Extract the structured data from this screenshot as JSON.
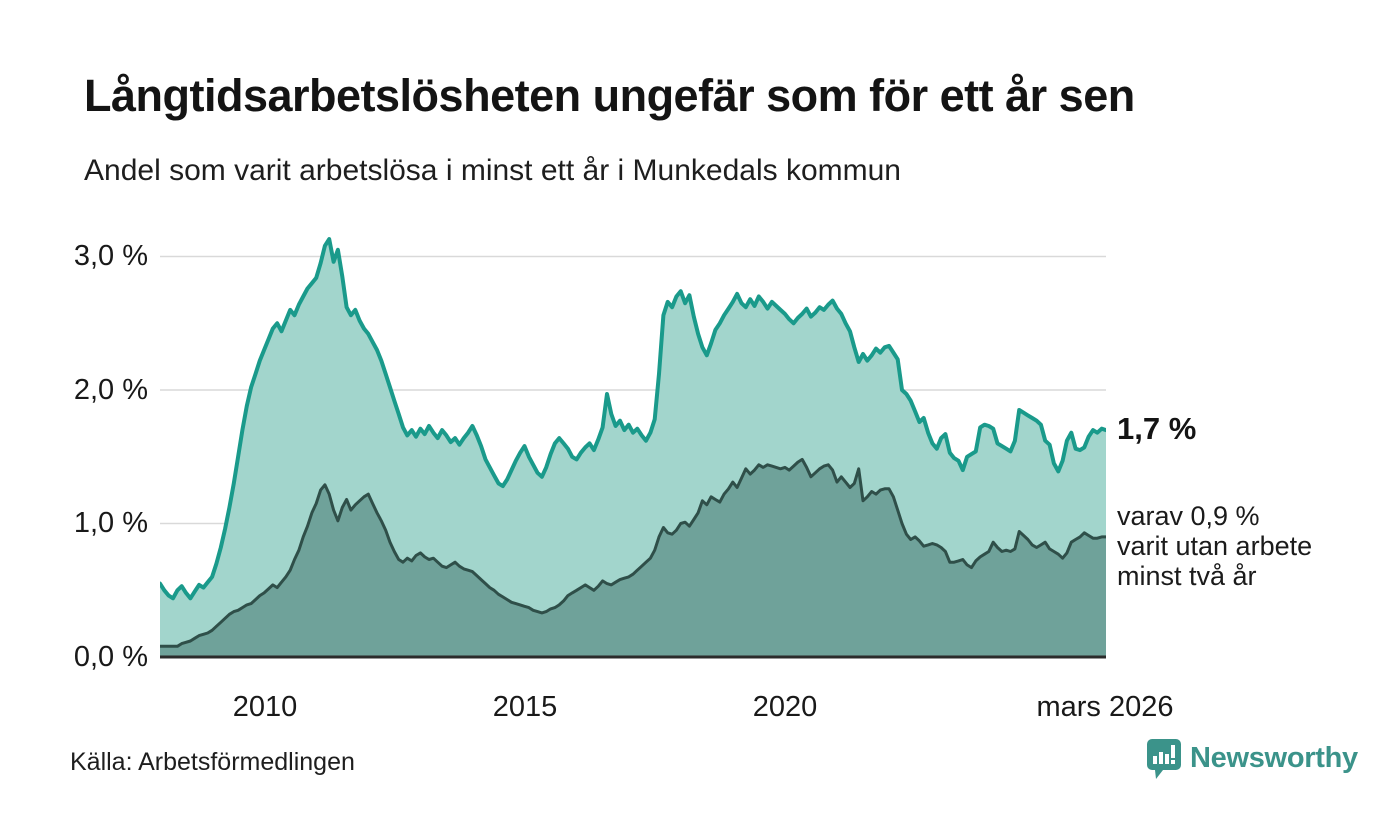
{
  "header": {
    "title": "Långtidsarbetslösheten ungefär som för ett år sen",
    "subtitle": "Andel som varit arbetslösa i minst ett år i Munkedals kommun"
  },
  "footer": {
    "source": "Källa: Arbetsförmedlingen",
    "brand_name": "Newsworthy"
  },
  "colors": {
    "line_1yr": "#1a9a8b",
    "fill_1yr": "#a2d5cc",
    "line_2yr": "#2f4f49",
    "fill_2yr": "#6fa29a",
    "gridline": "#d9d9d9",
    "axis_baseline": "#2b2b2b",
    "brand_teal": "#3b938a"
  },
  "chart_data": {
    "type": "area",
    "title": "Långtidsarbetslösheten ungefär som för ett år sen",
    "subtitle": "Andel som varit arbetslösa i minst ett år i Munkedals kommun",
    "x_start": "2008-01",
    "x_end": "2026-03",
    "frequency": "monthly",
    "xlabel": "",
    "ylabel": "",
    "ylim": [
      0,
      3.3
    ],
    "grid": "horizontal",
    "legend": "none",
    "x_ticks": [
      {
        "label": "2010"
      },
      {
        "label": "2015"
      },
      {
        "label": "2020"
      },
      {
        "label": "mars 2026"
      }
    ],
    "y_ticks": [
      {
        "label": "0,0 %",
        "value": 0
      },
      {
        "label": "1,0 %",
        "value": 1
      },
      {
        "label": "2,0 %",
        "value": 2
      },
      {
        "label": "3,0 %",
        "value": 3
      }
    ],
    "series": [
      {
        "name": "Andel som varit arbetslösa i minst ett år",
        "color": "#1a9a8b",
        "fill": "#a2d5cc",
        "latest_value_pct": 1.7,
        "values": [
          0.55,
          0.5,
          0.46,
          0.44,
          0.5,
          0.53,
          0.48,
          0.44,
          0.49,
          0.54,
          0.52,
          0.56,
          0.6,
          0.7,
          0.82,
          0.96,
          1.12,
          1.3,
          1.5,
          1.7,
          1.88,
          2.02,
          2.12,
          2.22,
          2.3,
          2.38,
          2.46,
          2.5,
          2.44,
          2.52,
          2.6,
          2.56,
          2.64,
          2.7,
          2.76,
          2.8,
          2.84,
          2.95,
          3.08,
          3.13,
          2.96,
          3.05,
          2.85,
          2.62,
          2.56,
          2.6,
          2.52,
          2.46,
          2.42,
          2.36,
          2.3,
          2.22,
          2.12,
          2.02,
          1.92,
          1.82,
          1.72,
          1.66,
          1.7,
          1.65,
          1.71,
          1.67,
          1.73,
          1.68,
          1.64,
          1.7,
          1.66,
          1.61,
          1.64,
          1.59,
          1.64,
          1.68,
          1.73,
          1.66,
          1.58,
          1.48,
          1.42,
          1.36,
          1.3,
          1.28,
          1.33,
          1.4,
          1.47,
          1.53,
          1.58,
          1.5,
          1.44,
          1.38,
          1.35,
          1.42,
          1.52,
          1.6,
          1.64,
          1.6,
          1.56,
          1.5,
          1.48,
          1.53,
          1.57,
          1.6,
          1.55,
          1.63,
          1.72,
          1.97,
          1.82,
          1.73,
          1.77,
          1.7,
          1.74,
          1.68,
          1.71,
          1.66,
          1.62,
          1.68,
          1.78,
          2.12,
          2.56,
          2.66,
          2.62,
          2.7,
          2.74,
          2.65,
          2.71,
          2.55,
          2.42,
          2.32,
          2.26,
          2.35,
          2.45,
          2.5,
          2.56,
          2.61,
          2.66,
          2.72,
          2.65,
          2.62,
          2.68,
          2.63,
          2.7,
          2.66,
          2.61,
          2.66,
          2.63,
          2.6,
          2.57,
          2.53,
          2.5,
          2.54,
          2.57,
          2.61,
          2.55,
          2.58,
          2.62,
          2.6,
          2.64,
          2.67,
          2.61,
          2.57,
          2.5,
          2.44,
          2.32,
          2.21,
          2.27,
          2.22,
          2.26,
          2.31,
          2.28,
          2.32,
          2.33,
          2.28,
          2.23,
          2.0,
          1.97,
          1.92,
          1.84,
          1.76,
          1.79,
          1.68,
          1.6,
          1.56,
          1.64,
          1.67,
          1.53,
          1.49,
          1.47,
          1.4,
          1.5,
          1.52,
          1.54,
          1.72,
          1.74,
          1.73,
          1.71,
          1.6,
          1.58,
          1.56,
          1.54,
          1.62,
          1.85,
          1.83,
          1.81,
          1.79,
          1.77,
          1.74,
          1.62,
          1.59,
          1.45,
          1.39,
          1.47,
          1.62,
          1.68,
          1.56,
          1.55,
          1.57,
          1.65,
          1.7,
          1.68,
          1.71,
          1.7
        ]
      },
      {
        "name": "varav arbetslösa minst två år",
        "color": "#2f4f49",
        "fill": "#6fa29a",
        "latest_value_pct": 0.9,
        "values": [
          0.08,
          0.08,
          0.08,
          0.08,
          0.08,
          0.1,
          0.11,
          0.12,
          0.14,
          0.16,
          0.17,
          0.18,
          0.2,
          0.23,
          0.26,
          0.29,
          0.32,
          0.34,
          0.35,
          0.37,
          0.39,
          0.4,
          0.43,
          0.46,
          0.48,
          0.51,
          0.54,
          0.52,
          0.56,
          0.6,
          0.65,
          0.73,
          0.8,
          0.9,
          0.98,
          1.08,
          1.15,
          1.25,
          1.29,
          1.22,
          1.1,
          1.02,
          1.12,
          1.18,
          1.1,
          1.14,
          1.17,
          1.2,
          1.22,
          1.15,
          1.08,
          1.02,
          0.95,
          0.86,
          0.79,
          0.73,
          0.71,
          0.74,
          0.72,
          0.76,
          0.78,
          0.75,
          0.73,
          0.74,
          0.71,
          0.68,
          0.67,
          0.69,
          0.71,
          0.68,
          0.66,
          0.65,
          0.64,
          0.61,
          0.58,
          0.55,
          0.52,
          0.5,
          0.47,
          0.45,
          0.43,
          0.41,
          0.4,
          0.39,
          0.38,
          0.37,
          0.35,
          0.34,
          0.33,
          0.34,
          0.36,
          0.37,
          0.39,
          0.42,
          0.46,
          0.48,
          0.5,
          0.52,
          0.54,
          0.52,
          0.5,
          0.53,
          0.57,
          0.55,
          0.54,
          0.56,
          0.58,
          0.59,
          0.6,
          0.62,
          0.65,
          0.68,
          0.71,
          0.74,
          0.8,
          0.9,
          0.97,
          0.93,
          0.92,
          0.95,
          1.0,
          1.01,
          0.98,
          1.03,
          1.08,
          1.17,
          1.14,
          1.2,
          1.18,
          1.16,
          1.22,
          1.26,
          1.31,
          1.27,
          1.34,
          1.41,
          1.37,
          1.4,
          1.44,
          1.42,
          1.44,
          1.43,
          1.42,
          1.41,
          1.42,
          1.4,
          1.43,
          1.46,
          1.48,
          1.42,
          1.35,
          1.38,
          1.41,
          1.43,
          1.44,
          1.4,
          1.31,
          1.35,
          1.31,
          1.27,
          1.3,
          1.41,
          1.17,
          1.2,
          1.24,
          1.22,
          1.25,
          1.26,
          1.26,
          1.2,
          1.1,
          1.0,
          0.92,
          0.88,
          0.9,
          0.87,
          0.83,
          0.84,
          0.85,
          0.84,
          0.82,
          0.79,
          0.71,
          0.71,
          0.72,
          0.73,
          0.69,
          0.67,
          0.72,
          0.75,
          0.77,
          0.79,
          0.86,
          0.82,
          0.79,
          0.8,
          0.79,
          0.81,
          0.94,
          0.91,
          0.88,
          0.84,
          0.82,
          0.84,
          0.86,
          0.81,
          0.79,
          0.77,
          0.74,
          0.78,
          0.86,
          0.88,
          0.9,
          0.93,
          0.91,
          0.89,
          0.89,
          0.9,
          0.9
        ]
      }
    ],
    "annotations": {
      "latest_value_label": "1,7 %",
      "secondary_lines": [
        "varav 0,9 %",
        "varit utan arbete",
        "minst två år"
      ]
    }
  }
}
